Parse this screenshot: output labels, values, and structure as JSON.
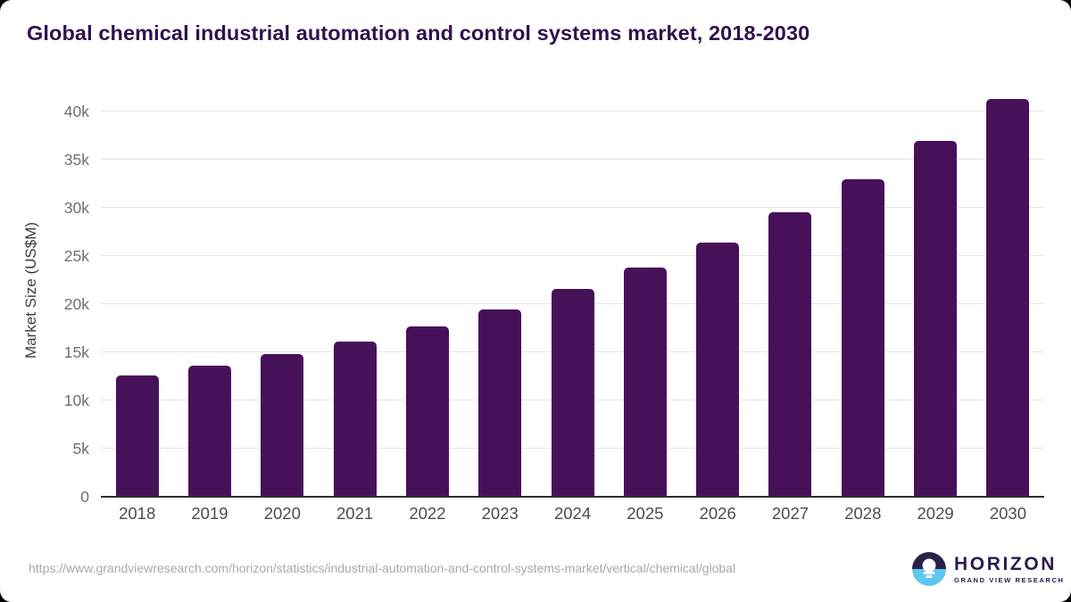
{
  "header": {
    "title": "Global chemical industrial automation and control systems market, 2018-2030",
    "title_color": "#31114e"
  },
  "chart_data": {
    "type": "bar",
    "title": "Global chemical industrial automation and control systems market, 2018-2030",
    "xlabel": "",
    "ylabel": "Market Size (US$M)",
    "categories": [
      "2018",
      "2019",
      "2020",
      "2021",
      "2022",
      "2023",
      "2024",
      "2025",
      "2026",
      "2027",
      "2028",
      "2029",
      "2030"
    ],
    "values": [
      12600,
      13650,
      14800,
      16100,
      17700,
      19450,
      21550,
      23800,
      26450,
      29550,
      33000,
      36950,
      41300
    ],
    "ylim": [
      0,
      43000
    ],
    "ytick_interval": 5000,
    "ytick_labels": [
      "0",
      "5k",
      "10k",
      "15k",
      "20k",
      "25k",
      "30k",
      "35k",
      "40k"
    ],
    "grid": true,
    "legend": "none",
    "bar_color": "#471159",
    "gridline_color": "#e4e4e4",
    "axis_line_color": "#2e2e2e",
    "ytick_label_color": "#6f6f6f",
    "xtick_label_color": "#4c4c4c"
  },
  "footer": {
    "source_url": "https://www.grandviewresearch.com/horizon/statistics/industrial-automation-and-control-systems-market/vertical/chemical/global",
    "logo": {
      "brand": "HORIZON",
      "sub_brand": "GRAND VIEW RESEARCH",
      "icon": "horizon-sunset-icon",
      "icon_top_color": "#2b2148",
      "icon_bottom_color": "#5ec7f0",
      "text_color": "#2b1b4d"
    }
  }
}
